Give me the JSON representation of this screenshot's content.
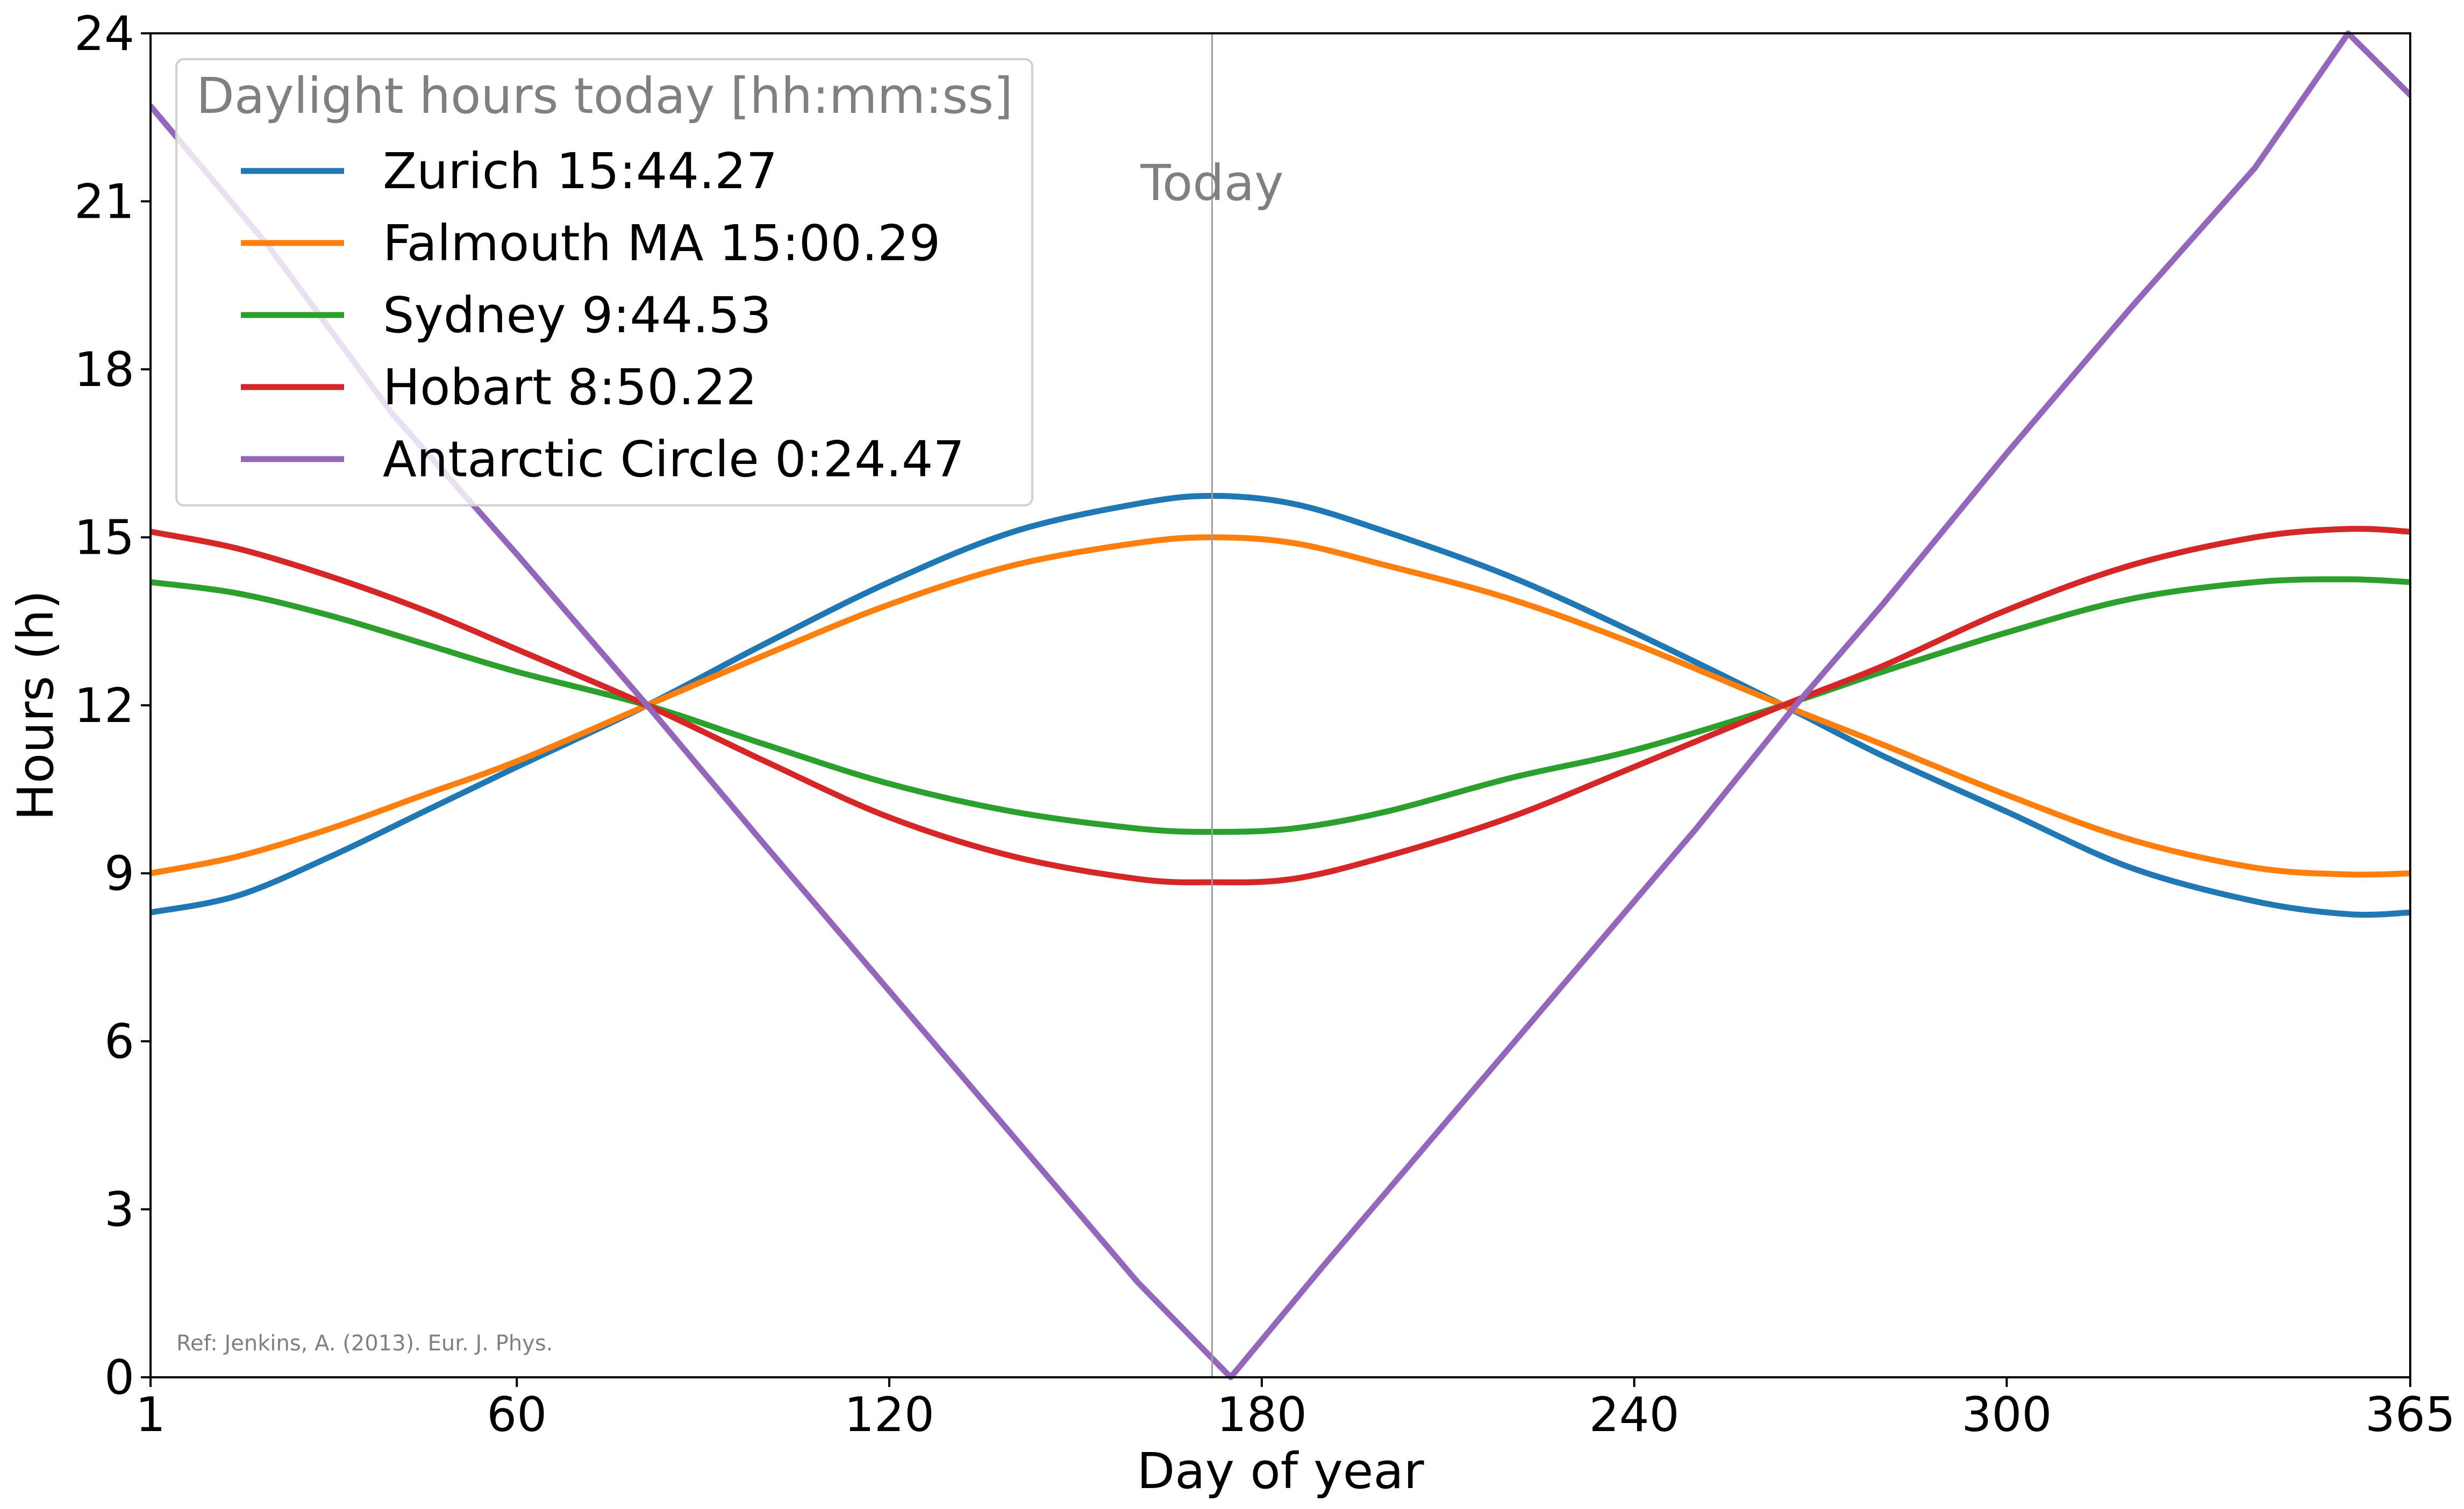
{
  "chart_data": {
    "type": "line",
    "xlabel": "Day of year",
    "ylabel": "Hours (h)",
    "xlim": [
      1,
      365
    ],
    "ylim": [
      0,
      24
    ],
    "xticks": [
      1,
      60,
      120,
      180,
      240,
      300,
      365
    ],
    "yticks": [
      0,
      3,
      6,
      9,
      12,
      15,
      18,
      21,
      24
    ],
    "grid": false,
    "legend": {
      "title": "Daylight hours today [hh:mm:ss]",
      "placement": "top-left"
    },
    "vline": {
      "x": 172,
      "label": "Today",
      "color": "#a0a0a0"
    },
    "annotation": "Ref: Jenkins, A. (2013). Eur. J. Phys.",
    "series": [
      {
        "name": "Zurich 15:44.27",
        "color": "#1f77b4",
        "x": [
          1,
          15,
          30,
          45,
          60,
          81,
          100,
          120,
          140,
          160,
          172,
          185,
          200,
          220,
          240,
          264,
          280,
          300,
          320,
          340,
          355,
          365
        ],
        "y": [
          8.3,
          8.6,
          9.3,
          10.1,
          10.9,
          12.0,
          13.1,
          14.2,
          15.1,
          15.6,
          15.74,
          15.6,
          15.1,
          14.3,
          13.3,
          12.0,
          11.1,
          10.1,
          9.1,
          8.5,
          8.27,
          8.3
        ]
      },
      {
        "name": "Falmouth MA 15:00.29",
        "color": "#ff7f0e",
        "x": [
          1,
          15,
          30,
          45,
          60,
          81,
          100,
          120,
          140,
          160,
          172,
          185,
          200,
          220,
          240,
          264,
          280,
          300,
          320,
          340,
          355,
          365
        ],
        "y": [
          9.0,
          9.3,
          9.8,
          10.4,
          11.0,
          12.0,
          12.9,
          13.8,
          14.5,
          14.9,
          15.0,
          14.9,
          14.5,
          13.9,
          13.1,
          12.0,
          11.3,
          10.4,
          9.6,
          9.1,
          8.98,
          9.0
        ]
      },
      {
        "name": "Sydney 9:44.53",
        "color": "#2ca02c",
        "x": [
          1,
          15,
          30,
          45,
          60,
          81,
          100,
          120,
          140,
          160,
          172,
          185,
          200,
          220,
          240,
          264,
          280,
          300,
          320,
          340,
          355,
          365
        ],
        "y": [
          14.2,
          14.0,
          13.6,
          13.1,
          12.6,
          12.0,
          11.3,
          10.6,
          10.1,
          9.8,
          9.74,
          9.8,
          10.1,
          10.7,
          11.2,
          12.0,
          12.6,
          13.3,
          13.9,
          14.2,
          14.25,
          14.2
        ]
      },
      {
        "name": "Hobart 8:50.22",
        "color": "#d62728",
        "x": [
          1,
          15,
          30,
          45,
          60,
          81,
          100,
          120,
          140,
          160,
          172,
          185,
          200,
          220,
          240,
          264,
          280,
          300,
          320,
          340,
          355,
          365
        ],
        "y": [
          15.1,
          14.8,
          14.3,
          13.7,
          13.0,
          12.0,
          11.0,
          10.0,
          9.3,
          8.9,
          8.84,
          8.9,
          9.3,
          10.0,
          10.9,
          12.0,
          12.7,
          13.7,
          14.5,
          15.0,
          15.15,
          15.1
        ]
      },
      {
        "name": "Antarctic Circle 0:24.47",
        "color": "#9467bd",
        "x": [
          1,
          20,
          40,
          60,
          81,
          100,
          120,
          140,
          160,
          175,
          190,
          210,
          230,
          250,
          266,
          280,
          300,
          320,
          340,
          355,
          365
        ],
        "y": [
          22.7,
          20.2,
          17.2,
          14.7,
          12.0,
          9.5,
          6.9,
          4.3,
          1.7,
          0.0,
          2.0,
          4.6,
          7.2,
          9.8,
          12.0,
          13.8,
          16.5,
          19.1,
          21.6,
          24.0,
          22.9
        ]
      }
    ]
  }
}
